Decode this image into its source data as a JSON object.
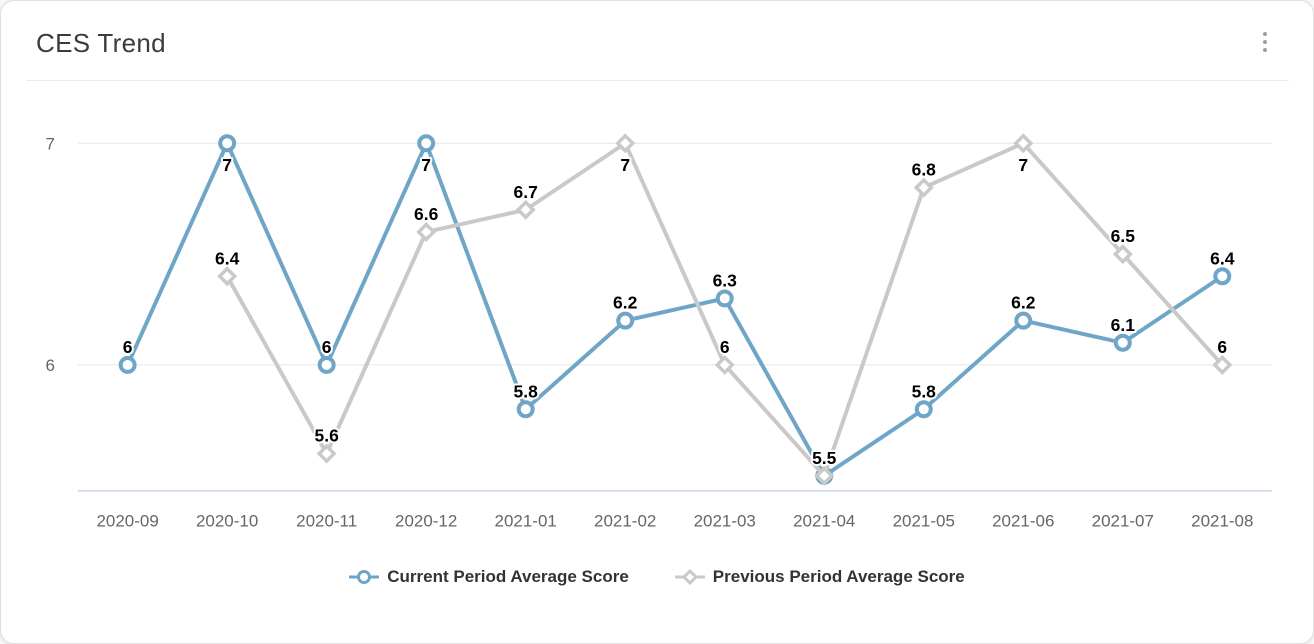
{
  "header": {
    "title": "CES Trend",
    "menu_icon": "kebab-vertical"
  },
  "chart_data": {
    "type": "line",
    "title": "CES Trend",
    "categories": [
      "2020-09",
      "2020-10",
      "2020-11",
      "2020-12",
      "2021-01",
      "2021-02",
      "2021-03",
      "2021-04",
      "2021-05",
      "2021-06",
      "2021-07",
      "2021-08"
    ],
    "series": [
      {
        "name": "Current Period Average Score",
        "color": "#6FA6C7",
        "marker": "circle",
        "values": [
          6,
          7,
          6,
          7,
          5.8,
          6.2,
          6.3,
          5.5,
          5.8,
          6.2,
          6.1,
          6.4
        ]
      },
      {
        "name": "Previous Period Average Score",
        "color": "#C9C9C9",
        "marker": "diamond",
        "values": [
          null,
          6.4,
          5.6,
          6.6,
          6.7,
          7,
          6,
          5.5,
          6.8,
          7,
          6.5,
          6
        ]
      }
    ],
    "xlabel": "",
    "ylabel": "",
    "yticks": [
      6,
      7
    ],
    "ylim": [
      5.43,
      7.15
    ],
    "grid": true,
    "data_labels": true,
    "legend_position": "bottom"
  },
  "colors": {
    "axis_line": "#CCD6EB",
    "gridline": "#E6E6E6",
    "tick_label": "#666666",
    "data_label": "#000000",
    "data_label_halo": "#FFFFFF",
    "title": "#3B3B3B",
    "legend_text": "#333333",
    "menu_dots": "#9E9E9E"
  }
}
